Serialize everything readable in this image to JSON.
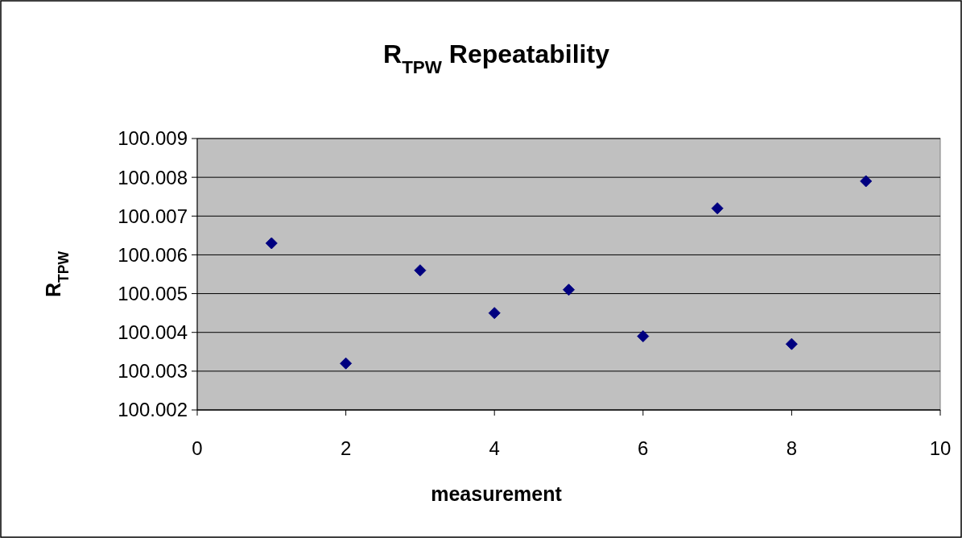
{
  "chart_data": {
    "type": "scatter",
    "title": "R$_{TPW}$ Repeatability",
    "xlabel": "measurement",
    "ylabel": "R$_{TPW}$",
    "x": [
      1,
      2,
      3,
      4,
      5,
      6,
      7,
      8,
      9
    ],
    "series": [
      {
        "color": "#000080",
        "values": [
          100.0063,
          100.0032,
          100.0056,
          100.0045,
          100.0051,
          100.0039,
          100.0072,
          100.0037,
          100.0079
        ]
      }
    ],
    "xlim": [
      0,
      10
    ],
    "xticks": [
      0,
      2,
      4,
      6,
      8,
      10
    ],
    "ylim": [
      100.002,
      100.009
    ],
    "yticks": [
      100.002,
      100.003,
      100.004,
      100.005,
      100.006,
      100.007,
      100.008,
      100.009
    ],
    "grid": "y",
    "marker": "diamond"
  }
}
